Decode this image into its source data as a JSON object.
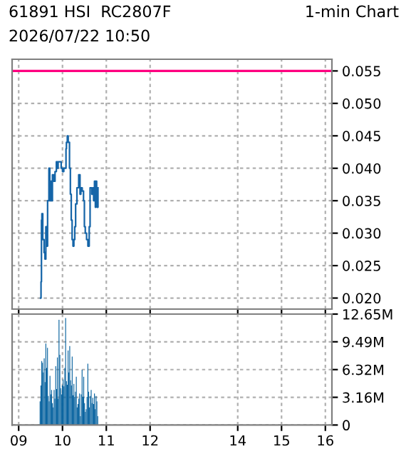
{
  "chart_data": [
    {
      "type": "step",
      "title": "61891 HSI  RC2807F",
      "subtitle": "1-min Chart",
      "annotations": [
        "2026/07/22 10:50"
      ],
      "x": [
        9.5,
        9.51,
        9.52,
        9.53,
        9.55,
        9.58,
        9.6,
        9.62,
        9.64,
        9.66,
        9.69,
        9.71,
        9.73,
        9.75,
        9.77,
        9.8,
        9.83,
        9.86,
        9.88,
        9.9,
        9.94,
        9.97,
        10.0,
        10.03,
        10.06,
        10.08,
        10.09,
        10.11,
        10.13,
        10.16,
        10.18,
        10.2,
        10.22,
        10.24,
        10.26,
        10.28,
        10.3,
        10.33,
        10.37,
        10.4,
        10.42,
        10.45,
        10.48,
        10.5,
        10.52,
        10.55,
        10.58,
        10.61,
        10.63,
        10.67,
        10.69,
        10.71,
        10.73,
        10.75,
        10.76,
        10.78,
        10.79,
        10.81
      ],
      "values": [
        0.02,
        0.0225,
        0.032,
        0.033,
        0.029,
        0.027,
        0.026,
        0.031,
        0.028,
        0.035,
        0.04,
        0.035,
        0.038,
        0.035,
        0.039,
        0.038,
        0.0395,
        0.041,
        0.04,
        0.041,
        0.041,
        0.04,
        0.0395,
        0.04,
        0.04,
        0.043,
        0.044,
        0.045,
        0.044,
        0.04,
        0.036,
        0.032,
        0.029,
        0.028,
        0.029,
        0.031,
        0.0345,
        0.037,
        0.039,
        0.036,
        0.037,
        0.0365,
        0.035,
        0.031,
        0.03,
        0.029,
        0.028,
        0.031,
        0.037,
        0.036,
        0.037,
        0.035,
        0.038,
        0.034,
        0.038,
        0.037,
        0.034,
        0.037
      ],
      "color": "#1565a8",
      "xlim": [
        8.85,
        16.15
      ],
      "xticks": [
        {
          "value": 9,
          "label": null
        },
        {
          "value": 10,
          "label": null
        },
        {
          "value": 11,
          "label": null
        },
        {
          "value": 12,
          "label": null
        },
        {
          "value": 14,
          "label": null
        },
        {
          "value": 15,
          "label": null
        },
        {
          "value": 16,
          "label": null
        }
      ],
      "ylim": [
        0.0183,
        0.0568
      ],
      "yticks": [
        {
          "value": 0.02,
          "label": "0.020"
        },
        0.025,
        {
          "value": 0.03,
          "label": "0.030"
        },
        0.035,
        {
          "value": 0.04,
          "label": "0.040"
        },
        0.045,
        {
          "value": 0.05,
          "label": "0.050"
        },
        0.055
      ],
      "ref_lines": [
        {
          "axis": "y",
          "value": 0.055,
          "color": "#ff0080"
        }
      ],
      "grid": true,
      "tick_labels": "y"
    },
    {
      "type": "bar",
      "x": [
        9.479,
        9.498,
        9.517,
        9.535,
        9.554,
        9.573,
        9.592,
        9.611,
        9.629,
        9.648,
        9.667,
        9.686,
        9.705,
        9.723,
        9.742,
        9.761,
        9.78,
        9.799,
        9.817,
        9.836,
        9.855,
        9.874,
        9.893,
        9.911,
        9.93,
        9.949,
        9.968,
        9.987,
        10.005,
        10.024,
        10.043,
        10.062,
        10.081,
        10.099,
        10.118,
        10.137,
        10.156,
        10.175,
        10.193,
        10.212,
        10.231,
        10.25,
        10.269,
        10.287,
        10.306,
        10.325,
        10.344,
        10.363,
        10.381,
        10.4,
        10.419,
        10.438,
        10.457,
        10.475,
        10.494,
        10.513,
        10.532,
        10.551,
        10.569,
        10.588,
        10.607,
        10.626,
        10.645,
        10.663,
        10.682,
        10.701,
        10.72,
        10.739,
        10.757,
        10.776,
        10.795
      ],
      "values": [
        2.7,
        4.5,
        7.3,
        7.1,
        6.0,
        7.6,
        4.9,
        9.3,
        6.5,
        8.8,
        3.3,
        2.7,
        5.6,
        3.5,
        4.0,
        2.5,
        2.0,
        4.0,
        3.0,
        6.7,
        4.1,
        7.7,
        3.0,
        12.0,
        8.0,
        4.2,
        3.5,
        4.5,
        5.2,
        4.4,
        6.5,
        12.2,
        5.0,
        4.6,
        8.5,
        6.0,
        9.0,
        5.1,
        4.5,
        7.8,
        3.4,
        4.7,
        3.2,
        3.8,
        5.5,
        2.0,
        2.4,
        3.0,
        3.6,
        1.0,
        3.5,
        6.3,
        3.2,
        5.5,
        2.5,
        1.5,
        1.8,
        3.2,
        7.0,
        3.8,
        2.0,
        3.3,
        4.0,
        2.5,
        3.1,
        2.4,
        3.6,
        1.8,
        3.3,
        2.7,
        1.0
      ],
      "color": "#0a64a0",
      "xlim": [
        8.85,
        16.15
      ],
      "xticks": [
        {
          "value": 9,
          "label": "09"
        },
        10,
        11,
        12,
        14,
        15,
        16
      ],
      "ylim": [
        0,
        12.65
      ],
      "yticks": [
        0,
        {
          "value": 3.16,
          "label": "3.16M"
        },
        {
          "value": 6.32,
          "label": "6.32M"
        },
        {
          "value": 9.49,
          "label": "9.49M"
        },
        {
          "value": 12.65,
          "label": "12.65M"
        }
      ],
      "grid": true
    }
  ]
}
